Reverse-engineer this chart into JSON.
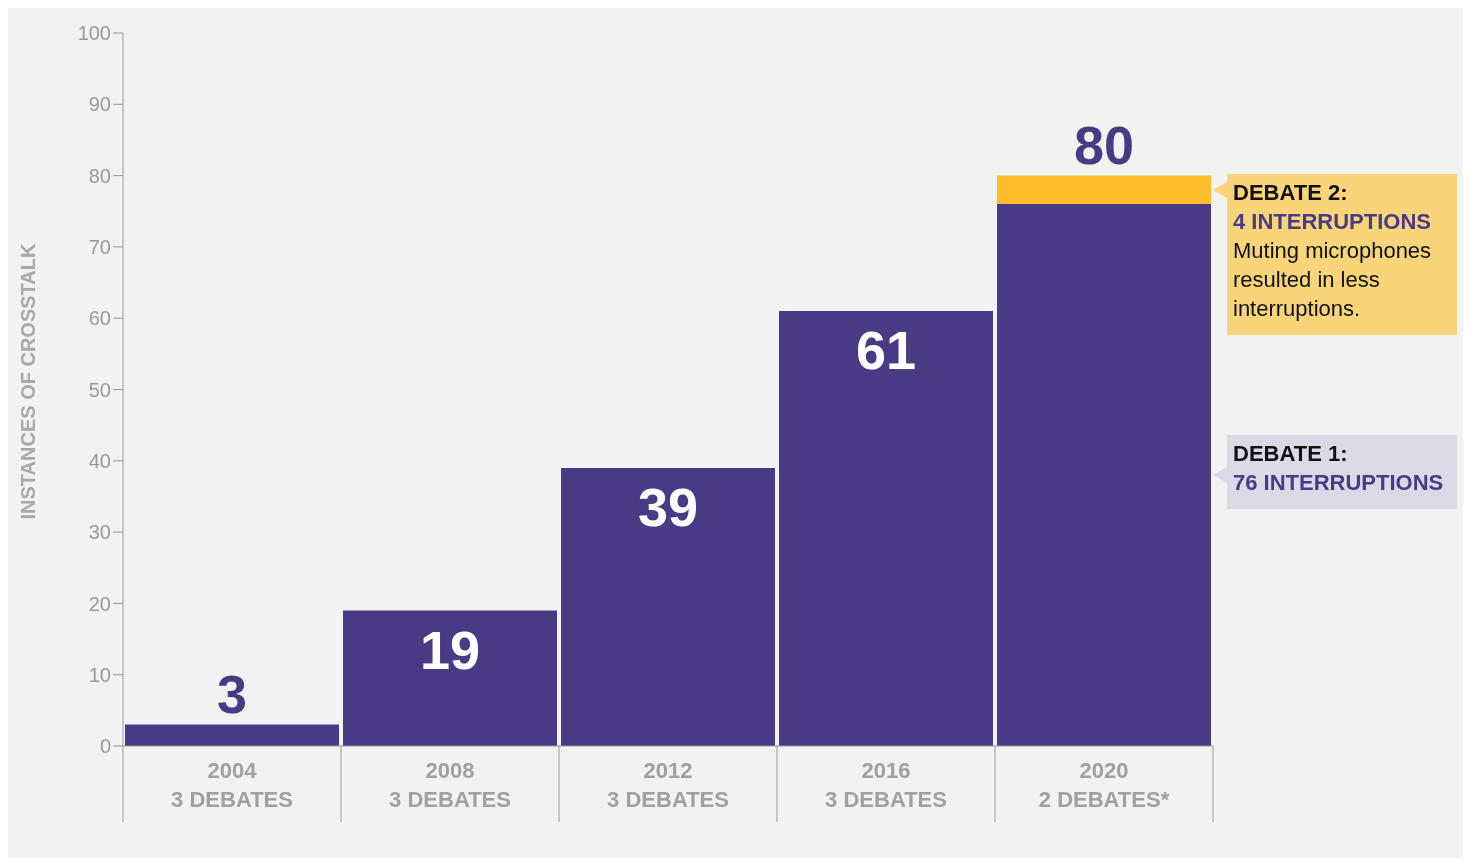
{
  "chart_data": {
    "type": "bar",
    "stacked": true,
    "ylabel": "INSTANCES OF CROSSTALK",
    "categories": [
      "2004\n3 DEBATES",
      "2008\n3 DEBATES",
      "2012\n3 DEBATES",
      "2016\n3 DEBATES",
      "2020\n2 DEBATES*"
    ],
    "series": [
      {
        "color": "#493a86",
        "values": [
          3,
          19,
          39,
          61,
          76
        ]
      },
      {
        "color": "#fcbd2c",
        "values": [
          null,
          null,
          null,
          null,
          4
        ]
      }
    ],
    "totals": [
      "3",
      "19",
      "39",
      "61",
      "80"
    ],
    "ylim": [
      0,
      100
    ],
    "yticks": [
      0,
      10,
      20,
      30,
      40,
      50,
      60,
      70,
      80,
      90,
      100
    ],
    "grid": false,
    "legend": false,
    "annotations": [
      "DEBATE 2:\n4 INTERRUPTIONS\nMuting microphones\nresulted in less\ninterruptions.",
      "DEBATE 1:\n76 INTERRUPTIONS"
    ]
  }
}
